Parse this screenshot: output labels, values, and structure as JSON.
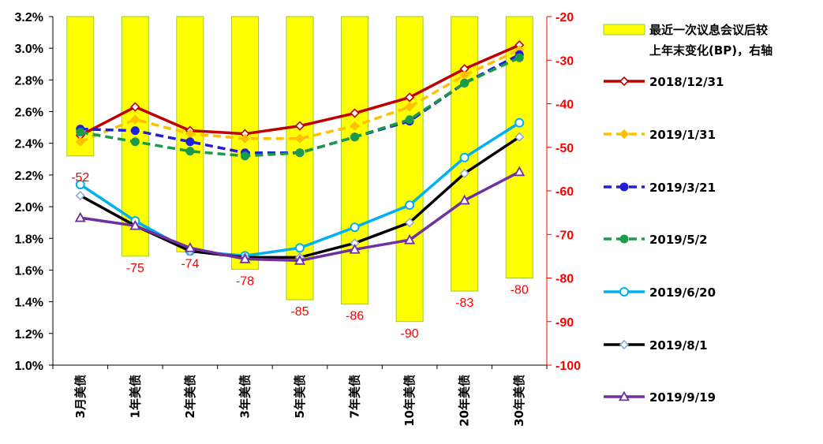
{
  "chart_data": {
    "type": "bar+line",
    "categories": [
      "3月美债",
      "1年美债",
      "2年美债",
      "3年美债",
      "5年美债",
      "7年美债",
      "10年美债",
      "20年美债",
      "30年美债"
    ],
    "left_axis": {
      "ylim": [
        1.0,
        3.2
      ],
      "ticks": [
        "1.0%",
        "1.2%",
        "1.4%",
        "1.6%",
        "1.8%",
        "2.0%",
        "2.2%",
        "2.4%",
        "2.6%",
        "2.8%",
        "3.0%",
        "3.2%"
      ]
    },
    "right_axis": {
      "ylim": [
        -100,
        -20
      ],
      "ticks": [
        "-100",
        "-90",
        "-80",
        "-70",
        "-60",
        "-50",
        "-40",
        "-30",
        "-20"
      ],
      "color": "#ff0000"
    },
    "bars": {
      "name": "最近一次议息会议后较上年末变化(BP)，右轴",
      "legend_lines": [
        "最近一次议息会议后较",
        "上年末变化(BP)，右轴"
      ],
      "axis": "right",
      "values": [
        -52,
        -75,
        -74,
        -78,
        -85,
        -86,
        -90,
        -83,
        -80
      ],
      "labels": [
        "-52",
        "-75",
        "-74",
        "-78",
        "-85",
        "-86",
        "-90",
        "-83",
        "-80"
      ],
      "fill": "#ffff00",
      "stroke": "#9acd32"
    },
    "series": [
      {
        "name": "2018/12/31",
        "color": "#c00000",
        "dash": "solid",
        "marker": "diamond-open",
        "values": [
          2.45,
          2.63,
          2.48,
          2.46,
          2.51,
          2.59,
          2.69,
          2.87,
          3.02
        ]
      },
      {
        "name": "2019/1/31",
        "color": "#ffc000",
        "dash": "dashed",
        "marker": "diamond-filled",
        "values": [
          2.41,
          2.55,
          2.46,
          2.43,
          2.43,
          2.51,
          2.63,
          2.83,
          2.99
        ]
      },
      {
        "name": "2019/3/21",
        "color": "#1f1fd6",
        "dash": "dashed",
        "marker": "circle-filled",
        "values": [
          2.49,
          2.48,
          2.41,
          2.34,
          2.34,
          2.44,
          2.54,
          2.78,
          2.96
        ]
      },
      {
        "name": "2019/5/2",
        "color": "#1a9b4a",
        "dash": "dashed",
        "marker": "circle-filled",
        "values": [
          2.47,
          2.41,
          2.35,
          2.32,
          2.34,
          2.44,
          2.55,
          2.78,
          2.94
        ]
      },
      {
        "name": "2019/6/20",
        "color": "#00b0f0",
        "dash": "solid",
        "marker": "circle-open",
        "values": [
          2.14,
          1.91,
          1.72,
          1.69,
          1.74,
          1.87,
          2.01,
          2.31,
          2.53
        ]
      },
      {
        "name": "2019/8/1",
        "color": "#000000",
        "dash": "solid",
        "marker": "diamond-open-blue",
        "values": [
          2.07,
          1.88,
          1.72,
          1.68,
          1.68,
          1.77,
          1.9,
          2.21,
          2.44
        ]
      },
      {
        "name": "2019/9/19",
        "color": "#7030a0",
        "dash": "solid",
        "marker": "triangle-open",
        "values": [
          1.93,
          1.88,
          1.74,
          1.67,
          1.66,
          1.73,
          1.79,
          2.04,
          2.22
        ]
      }
    ]
  }
}
